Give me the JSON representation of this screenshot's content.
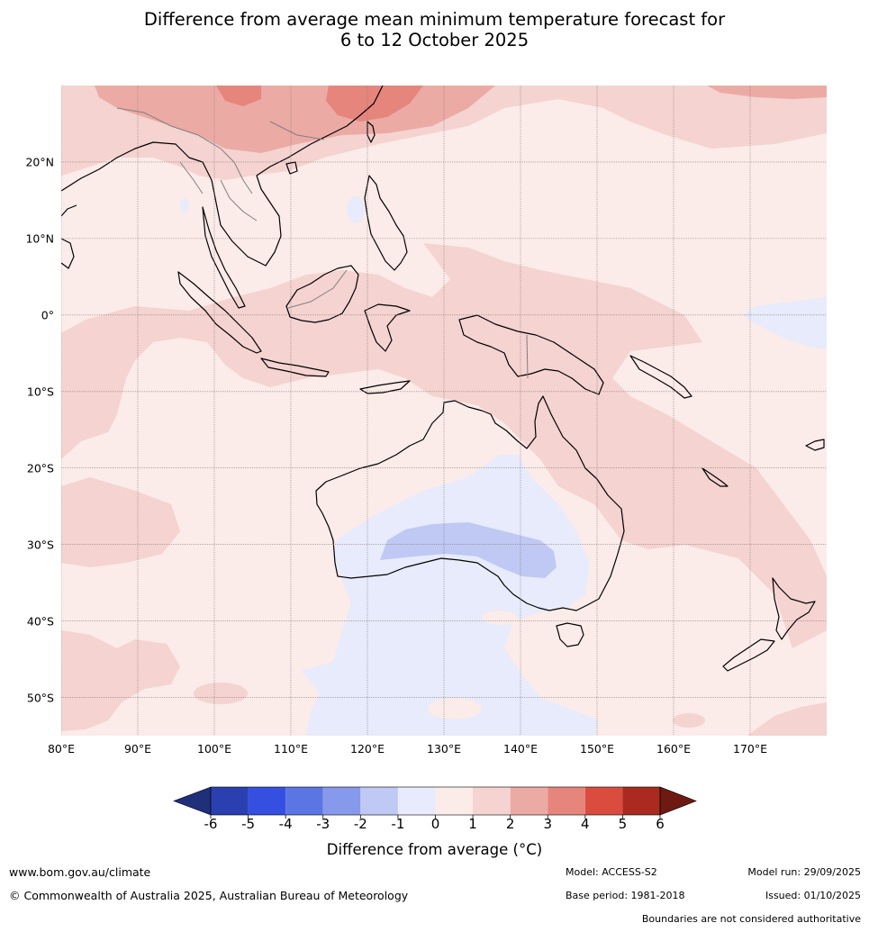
{
  "title": {
    "line1": "Difference from average mean minimum temperature forecast for",
    "line2": "6 to 12 October 2025"
  },
  "map": {
    "lat_labels": [
      "20°N",
      "10°N",
      "0°",
      "10°S",
      "20°S",
      "30°S",
      "40°S",
      "50°S"
    ],
    "lat_values": [
      20,
      10,
      0,
      -10,
      -20,
      -30,
      -40,
      -50
    ],
    "lon_labels": [
      "80°E",
      "90°E",
      "100°E",
      "110°E",
      "120°E",
      "130°E",
      "140°E",
      "150°E",
      "160°E",
      "170°E"
    ],
    "lon_values": [
      80,
      90,
      100,
      110,
      120,
      130,
      140,
      150,
      160,
      170
    ],
    "lon_range": [
      80,
      180
    ],
    "lat_range": [
      -55,
      30
    ],
    "background_color": "#fbebe9"
  },
  "colorbar": {
    "label": "Difference from average (°C)",
    "ticks": [
      "-6",
      "-5",
      "-4",
      "-3",
      "-2",
      "-1",
      "0",
      "1",
      "2",
      "3",
      "4",
      "5",
      "6"
    ],
    "under_color": "#1f2f7a",
    "over_color": "#6e1a12",
    "colors": [
      "#2a3fb0",
      "#3550e0",
      "#5b75e3",
      "#8799ea",
      "#c0c9f3",
      "#e7ebfb",
      "#fbebe9",
      "#f4d3d0",
      "#ecaaa5",
      "#e6857c",
      "#da4c3e",
      "#a92a1f"
    ]
  },
  "footer": {
    "website": "www.bom.gov.au/climate",
    "copyright": "© Commonwealth of Australia 2025, Australian Bureau of Meteorology",
    "model": "Model: ACCESS-S2",
    "base_period": "Base period: 1981-2018",
    "model_run": "Model run: 29/09/2025",
    "issued": "Issued: 01/10/2025",
    "disclaimer": "Boundaries are not considered authoritative"
  }
}
